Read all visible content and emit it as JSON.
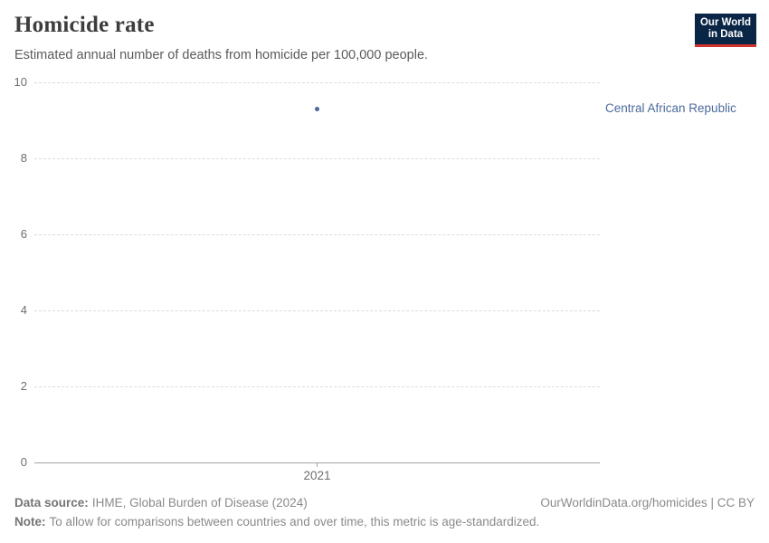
{
  "header": {
    "title": "Homicide rate",
    "subtitle": "Estimated annual number of deaths from homicide per 100,000 people.",
    "logo_line1": "Our World",
    "logo_line2": "in Data"
  },
  "chart_data": {
    "type": "scatter",
    "title": "Homicide rate",
    "subtitle": "Estimated annual number of deaths from homicide per 100,000 people.",
    "series": [
      {
        "name": "Central African Republic",
        "color": "#4c6a9c",
        "points": [
          {
            "x": 2021,
            "y": 9.3
          }
        ]
      }
    ],
    "xlabel": "",
    "ylabel": "",
    "x_tick_labels": [
      "2021"
    ],
    "y_tick_labels": [
      "10",
      "8",
      "6",
      "4",
      "2",
      "0"
    ],
    "y_tick_values": [
      10,
      8,
      6,
      4,
      2,
      0
    ],
    "ylim": [
      0,
      10
    ],
    "grid": "horizontal-dashed",
    "legend_position": "inline-right-of-point"
  },
  "footer": {
    "source_label": "Data source:",
    "source_text": "IHME, Global Burden of Disease (2024)",
    "note_label": "Note:",
    "note_text": "To allow for comparisons between countries and over time, this metric is age-standardized.",
    "rights": "OurWorldinData.org/homicides | CC BY"
  },
  "colors": {
    "accent": "#4c6a9c",
    "logo_background": "#0a2647",
    "logo_underline": "#d0342c",
    "gridline": "#dcdcdc",
    "axis": "#a3a3a3",
    "tick_label": "#6e6e6e",
    "footer_text": "#8a8a8a"
  }
}
